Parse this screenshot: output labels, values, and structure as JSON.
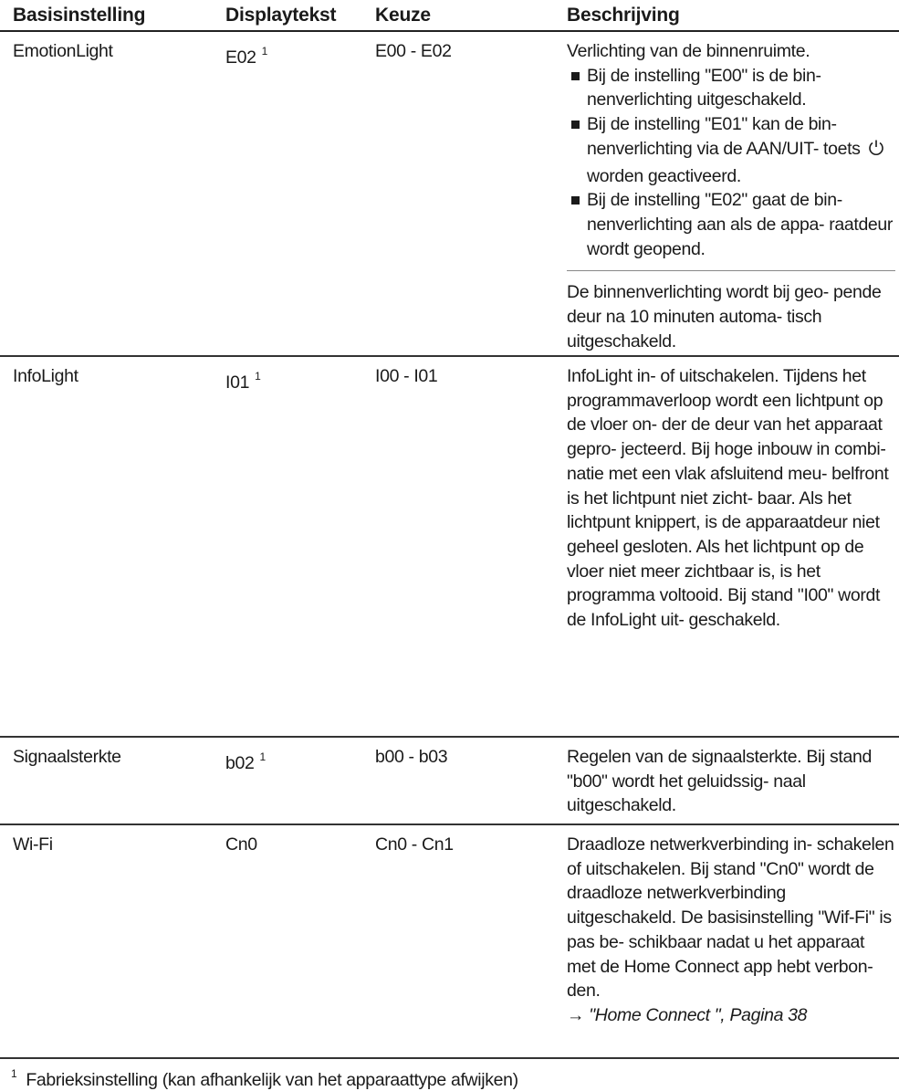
{
  "table": {
    "headers": [
      "Basisinstelling",
      "Displaytekst",
      "Keuze",
      "Beschrijving"
    ],
    "rows": [
      {
        "setting": "EmotionLight",
        "display": "E02",
        "display_footnote": "1",
        "choice": "E00 - E02",
        "description": {
          "intro": "Verlichting van de binnenruimte.",
          "bullet_1": "Bij de instelling \"E00\" is de bin- nenverlichting uitgeschakeld.",
          "bullet_2_part1": "Bij de instelling \"E01\" kan de bin- nenverlichting via de AAN/UIT- toets",
          "bullet_2_part2": "worden geactiveerd.",
          "bullet_3": "Bij de instelling \"E02\" gaat de bin- nenverlichting aan als de appa- raatdeur wordt geopend.",
          "note": "De binnenverlichting wordt bij geo- pende deur na 10 minuten automa- tisch uitgeschakeld."
        }
      },
      {
        "setting": "InfoLight",
        "display": "I01",
        "display_footnote": "1",
        "choice": "I00 - I01",
        "description": {
          "text": "InfoLight in- of uitschakelen. Tijdens het programmaverloop wordt een lichtpunt op de vloer on- der de deur van het apparaat gepro- jecteerd. Bij hoge inbouw in combi- natie met een vlak afsluitend meu- belfront is het lichtpunt niet zicht- baar. Als het lichtpunt knippert, is de apparaatdeur niet geheel gesloten. Als het lichtpunt op de vloer niet meer zichtbaar is, is het programma voltooid. Bij stand \"I00\" wordt de InfoLight uit- geschakeld."
        }
      },
      {
        "setting": "Signaalsterkte",
        "display": "b02",
        "display_footnote": "1",
        "choice": "b00 - b03",
        "description": {
          "text": "Regelen van de signaalsterkte. Bij stand \"b00\" wordt het geluidssig- naal uitgeschakeld."
        }
      },
      {
        "setting": "Wi-Fi",
        "display": "Cn0",
        "choice": "Cn0 - Cn1",
        "description": {
          "text": "Draadloze netwerkverbinding in- schakelen of uitschakelen. Bij stand \"Cn0\" wordt de draadloze netwerkverbinding uitgeschakeld. De basisinstelling \"Wif-Fi\" is pas be- schikbaar nadat u het apparaat met de Home Connect app hebt verbon- den.",
          "ref_arrow": "→",
          "ref": "\"Home Connect \", Pagina 38"
        }
      }
    ]
  },
  "footnote": {
    "number": "1",
    "text": "Fabrieksinstelling (kan afhankelijk van het apparaattype afwijken)"
  },
  "icons": {
    "power": "power-icon"
  }
}
